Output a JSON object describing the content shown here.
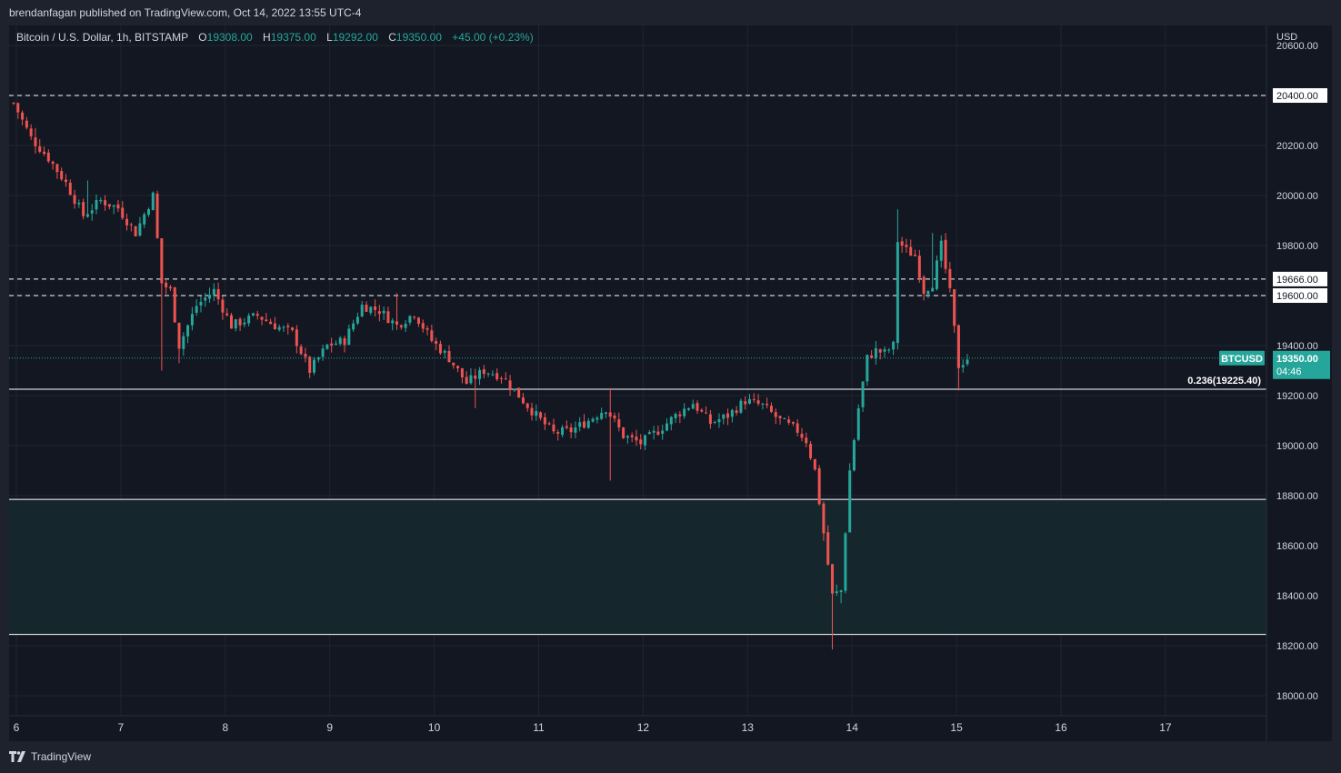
{
  "header": {
    "published": "brendanfagan published on TradingView.com, Oct 14, 2022 13:55 UTC-4"
  },
  "legend": {
    "symbol": "Bitcoin / U.S. Dollar, 1h, BITSTAMP",
    "o_label": "O",
    "o_value": "19308.00",
    "h_label": "H",
    "h_value": "19375.00",
    "l_label": "L",
    "l_value": "19292.00",
    "c_label": "C",
    "c_value": "19350.00",
    "change": "+45.00 (+0.23%)"
  },
  "colors": {
    "up": "#26a69a",
    "down": "#ef5350",
    "background": "#131722",
    "grid": "#1f2431",
    "zone": "#15272c",
    "text": "#d1d4dc"
  },
  "footer": {
    "brand": "TradingView"
  },
  "chart_data": {
    "type": "candlestick",
    "currency": "USD",
    "x_label": "",
    "y_label": "",
    "ylim": [
      17920,
      20680
    ],
    "y_ticks": [
      "20600.00",
      "20400.00",
      "20200.00",
      "20000.00",
      "19800.00",
      "19600.00",
      "19400.00",
      "19200.00",
      "19000.00",
      "18800.00",
      "18600.00",
      "18400.00",
      "18200.00",
      "18000.00"
    ],
    "x_ticks": [
      "6",
      "7",
      "8",
      "9",
      "10",
      "11",
      "12",
      "13",
      "14",
      "15",
      "16",
      "17"
    ],
    "levels": [
      {
        "price": 20400,
        "style": "dashed",
        "label": "20400.00"
      },
      {
        "price": 19666,
        "style": "dashed",
        "label": "19666.00"
      },
      {
        "price": 19600,
        "style": "dashed",
        "label": "19600.00"
      },
      {
        "price": 19225.4,
        "style": "solid",
        "label": "0.236(19225.40)"
      },
      {
        "price": 18785,
        "style": "solid",
        "label": ""
      },
      {
        "price": 18245,
        "style": "solid",
        "label": ""
      }
    ],
    "zone": [
      18245,
      18785
    ],
    "last_price": {
      "symbol": "BTCUSD",
      "price": "19350.00",
      "countdown": "04:46"
    },
    "anchors": [
      [
        0,
        20370
      ],
      [
        4,
        20230
      ],
      [
        8,
        20150
      ],
      [
        12,
        20050
      ],
      [
        16,
        19920
      ],
      [
        20,
        19980
      ],
      [
        24,
        19950
      ],
      [
        28,
        19850
      ],
      [
        32,
        20000
      ],
      [
        34,
        19650
      ],
      [
        36,
        19620
      ],
      [
        38,
        19400
      ],
      [
        42,
        19560
      ],
      [
        46,
        19620
      ],
      [
        50,
        19480
      ],
      [
        56,
        19520
      ],
      [
        60,
        19480
      ],
      [
        64,
        19450
      ],
      [
        68,
        19300
      ],
      [
        72,
        19400
      ],
      [
        76,
        19420
      ],
      [
        80,
        19560
      ],
      [
        84,
        19540
      ],
      [
        88,
        19480
      ],
      [
        92,
        19530
      ],
      [
        96,
        19420
      ],
      [
        100,
        19350
      ],
      [
        104,
        19250
      ],
      [
        108,
        19300
      ],
      [
        112,
        19280
      ],
      [
        116,
        19200
      ],
      [
        120,
        19120
      ],
      [
        124,
        19050
      ],
      [
        128,
        19060
      ],
      [
        132,
        19100
      ],
      [
        136,
        19150
      ],
      [
        140,
        19040
      ],
      [
        144,
        19010
      ],
      [
        148,
        19060
      ],
      [
        152,
        19120
      ],
      [
        156,
        19170
      ],
      [
        160,
        19090
      ],
      [
        164,
        19120
      ],
      [
        168,
        19180
      ],
      [
        172,
        19160
      ],
      [
        176,
        19100
      ],
      [
        180,
        19060
      ],
      [
        182,
        19020
      ],
      [
        184,
        18900
      ],
      [
        186,
        18650
      ],
      [
        188,
        18400
      ],
      [
        190,
        18420
      ],
      [
        192,
        18900
      ],
      [
        194,
        19150
      ],
      [
        196,
        19350
      ],
      [
        198,
        19380
      ],
      [
        200,
        19370
      ],
      [
        202,
        19400
      ],
      [
        203,
        19820
      ],
      [
        205,
        19780
      ],
      [
        207,
        19760
      ],
      [
        209,
        19620
      ],
      [
        211,
        19650
      ],
      [
        213,
        19800
      ],
      [
        215,
        19610
      ],
      [
        217,
        19320
      ],
      [
        219,
        19350
      ]
    ],
    "spikes": [
      {
        "i": 5,
        "h": 20270
      },
      {
        "i": 17,
        "h": 20060
      },
      {
        "i": 34,
        "l": 19300
      },
      {
        "i": 38,
        "l": 19330
      },
      {
        "i": 88,
        "h": 19610
      },
      {
        "i": 106,
        "l": 19150
      },
      {
        "i": 137,
        "h": 19230
      },
      {
        "i": 137,
        "l": 18860
      },
      {
        "i": 188,
        "l": 18185
      },
      {
        "i": 203,
        "h": 19945
      },
      {
        "i": 211,
        "h": 19850
      },
      {
        "i": 217,
        "l": 19220
      },
      {
        "i": 190,
        "l": 18370
      },
      {
        "i": 214,
        "h": 19850
      }
    ]
  }
}
